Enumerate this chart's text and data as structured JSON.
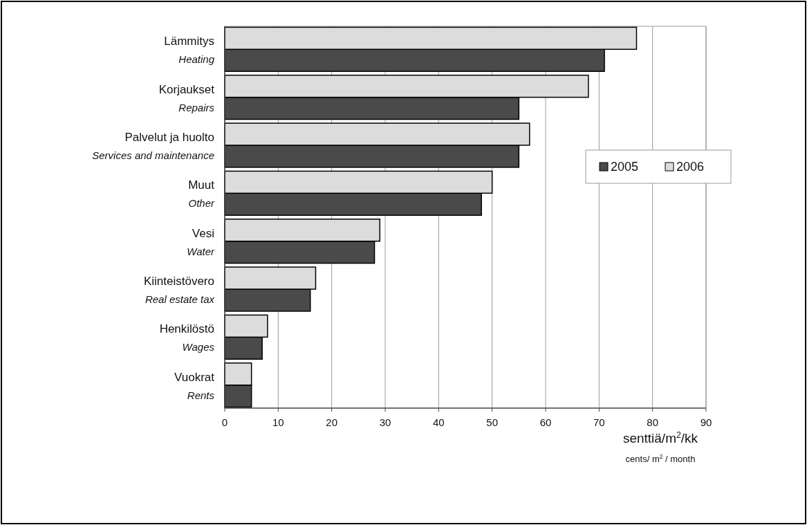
{
  "chart_data": {
    "type": "bar",
    "orientation": "horizontal",
    "categories": [
      "Lämmitys\nHeating",
      "Korjaukset\nRepairs",
      "Palvelut ja huolto\nServices and maintenance",
      "Muut\nOther",
      "Vesi\nWater",
      "Kiinteistövero\nReal estate tax",
      "Henkilöstö\nWages",
      "Vuokrat\nRents"
    ],
    "series": [
      {
        "name": "2005",
        "color": "#4a4a4a",
        "values": [
          71,
          55,
          55,
          48,
          28,
          16,
          7,
          5
        ]
      },
      {
        "name": "2006",
        "color": "#dcdcdc",
        "values": [
          77,
          68,
          57,
          50,
          29,
          17,
          8,
          5
        ]
      }
    ],
    "xlabel": "senttiä/m$^{2}$/kk\ncents/ m$^{2}$ / month",
    "xlim": [
      0,
      90
    ],
    "xticks": [
      0,
      10,
      20,
      30,
      40,
      50,
      60,
      70,
      80,
      90
    ],
    "grid": "x",
    "legend": "right"
  }
}
